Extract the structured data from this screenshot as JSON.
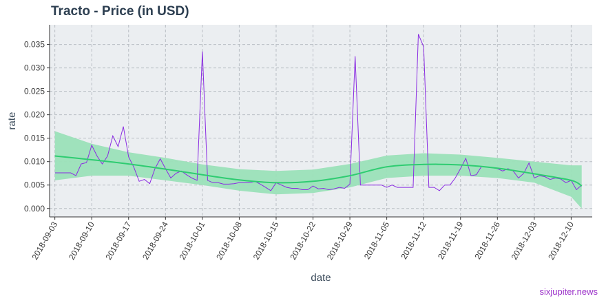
{
  "chart": {
    "title": "Tracto - Price (in USD)",
    "watermark": "sixjupiter.news"
  },
  "colors": {
    "panel_bg": "#ebeef1",
    "grid": "#b9bec4",
    "price_line": "#8a2be2",
    "smooth_line": "#2ecc71",
    "band": "#9be0b8"
  },
  "chart_data": {
    "type": "line",
    "title": "Tracto - Price (in USD)",
    "xlabel": "date",
    "ylabel": "rate",
    "xlim": [
      "2018-09-02",
      "2018-12-14"
    ],
    "ylim": [
      -0.0018,
      0.0392
    ],
    "grid": true,
    "x_ticks": [
      "2018-09-03",
      "2018-09-10",
      "2018-09-17",
      "2018-09-24",
      "2018-10-01",
      "2018-10-08",
      "2018-10-15",
      "2018-10-22",
      "2018-10-29",
      "2018-11-05",
      "2018-11-12",
      "2018-11-19",
      "2018-11-26",
      "2018-12-03",
      "2018-12-10"
    ],
    "y_ticks": [
      0.0,
      0.005,
      0.01,
      0.015,
      0.02,
      0.025,
      0.03,
      0.035
    ],
    "y_tick_labels": [
      "0.000",
      "0.005",
      "0.010",
      "0.015",
      "0.020",
      "0.025",
      "0.030",
      "0.035"
    ],
    "series": [
      {
        "x": [
          "2018-09-03",
          "2018-09-04",
          "2018-09-05",
          "2018-09-06",
          "2018-09-07",
          "2018-09-08",
          "2018-09-09",
          "2018-09-10",
          "2018-09-11",
          "2018-09-12",
          "2018-09-13",
          "2018-09-14",
          "2018-09-15",
          "2018-09-16",
          "2018-09-17",
          "2018-09-18",
          "2018-09-19",
          "2018-09-20",
          "2018-09-21",
          "2018-09-22",
          "2018-09-23",
          "2018-09-24",
          "2018-09-25",
          "2018-09-26",
          "2018-09-27",
          "2018-09-28",
          "2018-09-29",
          "2018-09-30",
          "2018-10-01",
          "2018-10-02",
          "2018-10-03",
          "2018-10-04",
          "2018-10-05",
          "2018-10-06",
          "2018-10-07",
          "2018-10-08",
          "2018-10-09",
          "2018-10-10",
          "2018-10-11",
          "2018-10-12",
          "2018-10-13",
          "2018-10-14",
          "2018-10-15",
          "2018-10-16",
          "2018-10-17",
          "2018-10-18",
          "2018-10-19",
          "2018-10-20",
          "2018-10-21",
          "2018-10-22",
          "2018-10-23",
          "2018-10-24",
          "2018-10-25",
          "2018-10-26",
          "2018-10-27",
          "2018-10-28",
          "2018-10-29",
          "2018-10-30",
          "2018-10-31",
          "2018-11-01",
          "2018-11-02",
          "2018-11-03",
          "2018-11-04",
          "2018-11-05",
          "2018-11-06",
          "2018-11-07",
          "2018-11-08",
          "2018-11-09",
          "2018-11-10",
          "2018-11-11",
          "2018-11-12",
          "2018-11-13",
          "2018-11-14",
          "2018-11-15",
          "2018-11-16",
          "2018-11-17",
          "2018-11-18",
          "2018-11-19",
          "2018-11-20",
          "2018-11-21",
          "2018-11-22",
          "2018-11-23",
          "2018-11-24",
          "2018-11-25",
          "2018-11-26",
          "2018-11-27",
          "2018-11-28",
          "2018-11-29",
          "2018-11-30",
          "2018-12-01",
          "2018-12-02",
          "2018-12-03",
          "2018-12-04",
          "2018-12-05",
          "2018-12-06",
          "2018-12-07",
          "2018-12-08",
          "2018-12-09",
          "2018-12-10",
          "2018-12-11",
          "2018-12-12"
        ],
        "y": [
          0.0076,
          0.0076,
          0.0076,
          0.0076,
          0.007,
          0.0095,
          0.0098,
          0.0135,
          0.0112,
          0.0095,
          0.0112,
          0.0155,
          0.0132,
          0.0175,
          0.011,
          0.0088,
          0.0058,
          0.0062,
          0.0053,
          0.0085,
          0.0106,
          0.0085,
          0.0065,
          0.0075,
          0.008,
          0.0072,
          0.0065,
          0.006,
          0.0335,
          0.006,
          0.0055,
          0.0055,
          0.0052,
          0.0052,
          0.0053,
          0.0055,
          0.0055,
          0.0055,
          0.0058,
          0.0052,
          0.0045,
          0.0038,
          0.0055,
          0.005,
          0.0045,
          0.0043,
          0.0043,
          0.004,
          0.004,
          0.0048,
          0.0042,
          0.0043,
          0.004,
          0.0042,
          0.0045,
          0.0043,
          0.0052,
          0.0325,
          0.005,
          0.005,
          0.005,
          0.005,
          0.005,
          0.0045,
          0.005,
          0.0045,
          0.0045,
          0.0045,
          0.0045,
          0.0372,
          0.0345,
          0.0045,
          0.0045,
          0.0038,
          0.005,
          0.005,
          0.0065,
          0.0085,
          0.0107,
          0.007,
          0.0072,
          0.009,
          0.0088,
          0.0087,
          0.0085,
          0.008,
          0.0085,
          0.008,
          0.0065,
          0.0075,
          0.0097,
          0.0065,
          0.007,
          0.0068,
          0.0062,
          0.0065,
          0.0063,
          0.0055,
          0.006,
          0.004,
          0.005
        ]
      },
      {
        "x": [
          "2018-09-03",
          "2018-09-10",
          "2018-09-17",
          "2018-09-24",
          "2018-10-01",
          "2018-10-08",
          "2018-10-15",
          "2018-10-22",
          "2018-10-29",
          "2018-11-05",
          "2018-11-12",
          "2018-11-19",
          "2018-11-26",
          "2018-12-03",
          "2018-12-10",
          "2018-12-12"
        ],
        "y": [
          0.0112,
          0.0104,
          0.0095,
          0.0084,
          0.0072,
          0.0061,
          0.0055,
          0.0058,
          0.007,
          0.0089,
          0.0094,
          0.0093,
          0.0086,
          0.0074,
          0.006,
          0.0048
        ],
        "lower": [
          0.006,
          0.007,
          0.007,
          0.006,
          0.005,
          0.0038,
          0.003,
          0.0033,
          0.0045,
          0.0065,
          0.007,
          0.007,
          0.0065,
          0.0055,
          0.0025,
          0.0
        ],
        "upper": [
          0.0165,
          0.0138,
          0.012,
          0.0108,
          0.0094,
          0.0084,
          0.008,
          0.0083,
          0.0095,
          0.0113,
          0.0118,
          0.0115,
          0.0108,
          0.01,
          0.0092,
          0.0092
        ]
      }
    ]
  }
}
